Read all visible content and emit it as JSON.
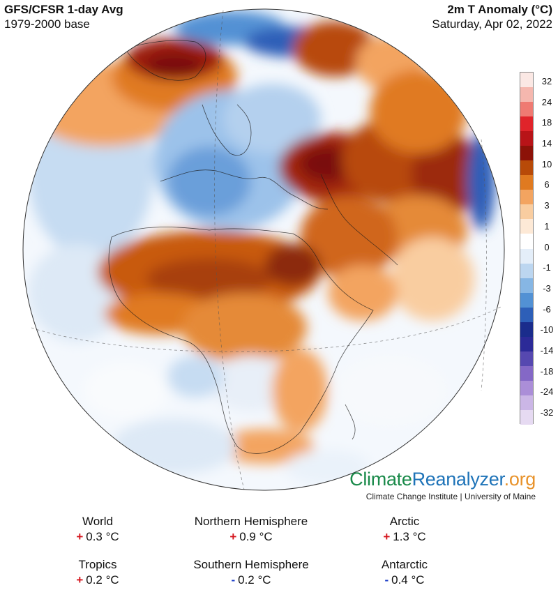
{
  "header": {
    "title_left": "GFS/CFSR 1-day Avg",
    "subtitle_left": "1979-2000 base",
    "title_right": "2m T Anomaly (°C)",
    "subtitle_right": "Saturday, Apr 02, 2022"
  },
  "legend": {
    "labels": [
      "32",
      "24",
      "18",
      "14",
      "10",
      "6",
      "3",
      "1",
      "0",
      "-1",
      "-3",
      "-6",
      "-10",
      "-14",
      "-18",
      "-24",
      "-32"
    ],
    "colors": [
      "#fbe8e4",
      "#f5b7ae",
      "#ef7a72",
      "#e0242a",
      "#b81418",
      "#8c1208",
      "#b84a08",
      "#e07a20",
      "#f3a460",
      "#f9cda0",
      "#fde9d6",
      "#ffffff",
      "#e4eef9",
      "#bcd6f0",
      "#86b6e4",
      "#5291d4",
      "#2d5fb8",
      "#1a2c8c",
      "#2c2a98",
      "#5648b0",
      "#8468c6",
      "#ab8ed8",
      "#cbb6e6",
      "#e6daf2"
    ]
  },
  "brand": {
    "name_part1": "Climate",
    "name_part2": "Reanalyzer",
    "name_part3": ".org",
    "subline": "Climate Change Institute | University of Maine"
  },
  "stats": [
    {
      "label": "World",
      "sign": "+",
      "value": "0.3 °C"
    },
    {
      "label": "Northern Hemisphere",
      "sign": "+",
      "value": "0.9 °C"
    },
    {
      "label": "Arctic",
      "sign": "+",
      "value": "1.3 °C"
    },
    {
      "label": "Tropics",
      "sign": "+",
      "value": "0.2 °C"
    },
    {
      "label": "Southern Hemisphere",
      "sign": "-",
      "value": "0.2 °C"
    },
    {
      "label": "Antarctic",
      "sign": "-",
      "value": "0.4 °C"
    }
  ]
}
